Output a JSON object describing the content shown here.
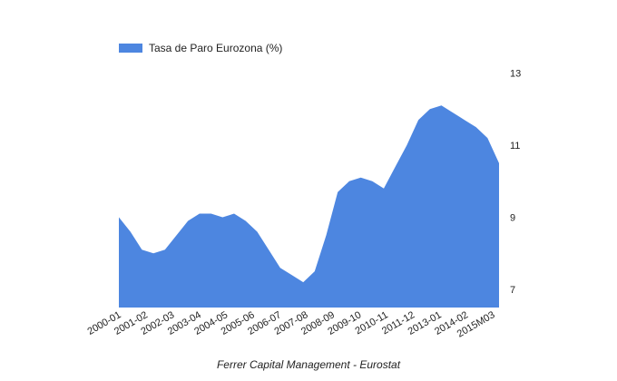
{
  "chart_data": {
    "type": "area",
    "legend_position": "top-left",
    "grid": false,
    "caption": "Ferrer Capital Management - Eurostat",
    "series": [
      {
        "name": "Tasa de Paro Eurozona (%)",
        "color": "#4d86e0",
        "values": [
          9.0,
          8.6,
          8.1,
          8.0,
          8.1,
          8.5,
          8.9,
          9.1,
          9.1,
          9.0,
          9.1,
          8.9,
          8.6,
          8.1,
          7.6,
          7.4,
          7.2,
          7.5,
          8.5,
          9.7,
          10.0,
          10.1,
          10.0,
          9.8,
          10.4,
          11.0,
          11.7,
          12.0,
          12.1,
          11.9,
          11.7,
          11.5,
          11.2,
          10.5
        ]
      }
    ],
    "x_tick_labels": [
      "2000-01",
      "2001-02",
      "2002-03",
      "2003-04",
      "2004-05",
      "2005-06",
      "2006-07",
      "2007-08",
      "2008-09",
      "2009-10",
      "2010-11",
      "2011-12",
      "2013-01",
      "2014-02",
      "2015M03"
    ],
    "y_ticks": [
      "7",
      "9",
      "11",
      "13"
    ],
    "ylim": [
      6.5,
      13
    ]
  }
}
